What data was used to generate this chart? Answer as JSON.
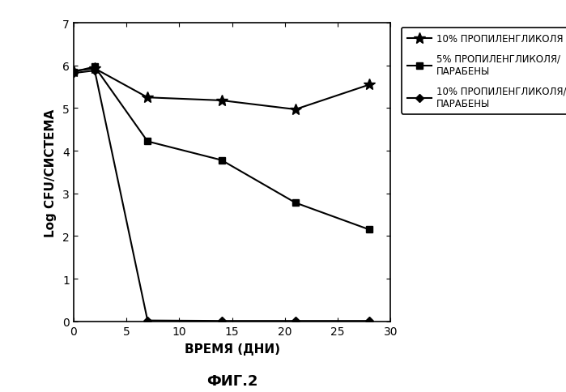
{
  "title": "ФИГ.2",
  "xlabel": "ВРЕМЯ (ДНИ)",
  "ylabel": "Log CFU/СИСТЕМА",
  "xlim": [
    0,
    30
  ],
  "ylim": [
    0,
    7
  ],
  "xticks": [
    0,
    5,
    10,
    15,
    20,
    25,
    30
  ],
  "yticks": [
    0,
    1,
    2,
    3,
    4,
    5,
    6,
    7
  ],
  "series": [
    {
      "label": "10% ПРОПИЛЕНГЛИКОЛЯ",
      "x": [
        0,
        2,
        7,
        14,
        21,
        28
      ],
      "y": [
        5.87,
        5.93,
        5.25,
        5.18,
        4.97,
        5.55
      ],
      "color": "#000000",
      "marker": "*",
      "markersize": 10,
      "linewidth": 1.5
    },
    {
      "label": "5% ПРОПИЛЕНГЛИКОЛЯ/\nПАРАБЕНЫ",
      "x": [
        0,
        2,
        7,
        14,
        21,
        28
      ],
      "y": [
        5.85,
        5.97,
        4.22,
        3.78,
        2.78,
        2.15
      ],
      "color": "#000000",
      "marker": "s",
      "markersize": 6,
      "linewidth": 1.5
    },
    {
      "label": "10% ПРОПИЛЕНГЛИКОЛЯ/\nПАРАБЕНЫ",
      "x": [
        0,
        2,
        7,
        14,
        21,
        28
      ],
      "y": [
        5.82,
        5.88,
        0.02,
        0.01,
        0.01,
        0.01
      ],
      "color": "#000000",
      "marker": "D",
      "markersize": 5,
      "linewidth": 1.5
    }
  ],
  "background_color": "#ffffff",
  "fig_width": 6.99,
  "fig_height": 4.85,
  "dpi": 100
}
